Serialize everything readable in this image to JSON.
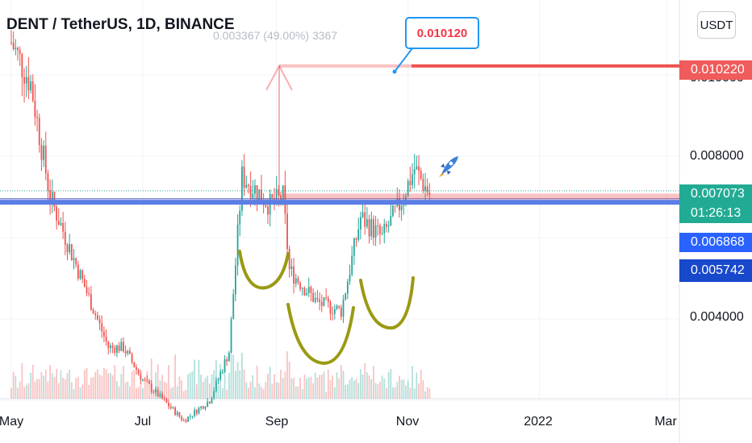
{
  "header": {
    "title": "DENT / TetherUS, 1D, BINANCE"
  },
  "measure_text": "0.003367 (49.00%) 3367",
  "callout_text": "0.010120",
  "currency_button": "USDT",
  "price_labels": {
    "target": "0.010220",
    "last": "0.007073",
    "countdown": "01:26:13",
    "level1": "0.006868",
    "level2": "0.005742"
  },
  "colors": {
    "up": "#26a69a",
    "down": "#ef5350",
    "target": "#ef5350",
    "support": "#5b7ee5",
    "cup": "#9a9a14",
    "last": "#26a69a",
    "level2": "#1848cc"
  },
  "icons": {
    "rocket": "rocket-icon"
  },
  "chart_data": {
    "type": "candlestick",
    "title": "DENT / TetherUS, 1D, BINANCE",
    "y_ticks": [
      "0.010000",
      "0.008000",
      "0.004000"
    ],
    "x_ticks": [
      "May",
      "Jul",
      "Sep",
      "Nov",
      "2022",
      "Mar"
    ],
    "ylim": [
      0.0013,
      0.0117
    ],
    "grid": true,
    "close_points": [
      {
        "date": "2021-05-01",
        "close": 0.0108
      },
      {
        "date": "2021-05-10",
        "close": 0.0098
      },
      {
        "date": "2021-05-19",
        "close": 0.007
      },
      {
        "date": "2021-06-01",
        "close": 0.0052
      },
      {
        "date": "2021-06-15",
        "close": 0.0033
      },
      {
        "date": "2021-06-22",
        "close": 0.0033
      },
      {
        "date": "2021-07-01",
        "close": 0.0025
      },
      {
        "date": "2021-07-20",
        "close": 0.0015
      },
      {
        "date": "2021-08-01",
        "close": 0.002
      },
      {
        "date": "2021-08-10",
        "close": 0.0032
      },
      {
        "date": "2021-08-16",
        "close": 0.0075
      },
      {
        "date": "2021-08-22",
        "close": 0.0072
      },
      {
        "date": "2021-08-29",
        "close": 0.0068
      },
      {
        "date": "2021-09-04",
        "close": 0.007
      },
      {
        "date": "2021-09-07",
        "close": 0.0052
      },
      {
        "date": "2021-09-20",
        "close": 0.0044
      },
      {
        "date": "2021-10-01",
        "close": 0.0042
      },
      {
        "date": "2021-10-10",
        "close": 0.0065
      },
      {
        "date": "2021-10-20",
        "close": 0.006
      },
      {
        "date": "2021-10-28",
        "close": 0.0068
      },
      {
        "date": "2021-11-04",
        "close": 0.0077
      },
      {
        "date": "2021-11-11",
        "close": 0.00707
      }
    ],
    "levels": [
      {
        "label": "0.010220",
        "value": 0.01022
      },
      {
        "label": "0.007073",
        "value": 0.007073
      },
      {
        "label": "0.006868",
        "value": 0.006868
      },
      {
        "label": "0.005742",
        "value": 0.005742
      }
    ],
    "annotations": [
      "0.010120",
      "0.003367 (49.00%) 3367"
    ]
  }
}
